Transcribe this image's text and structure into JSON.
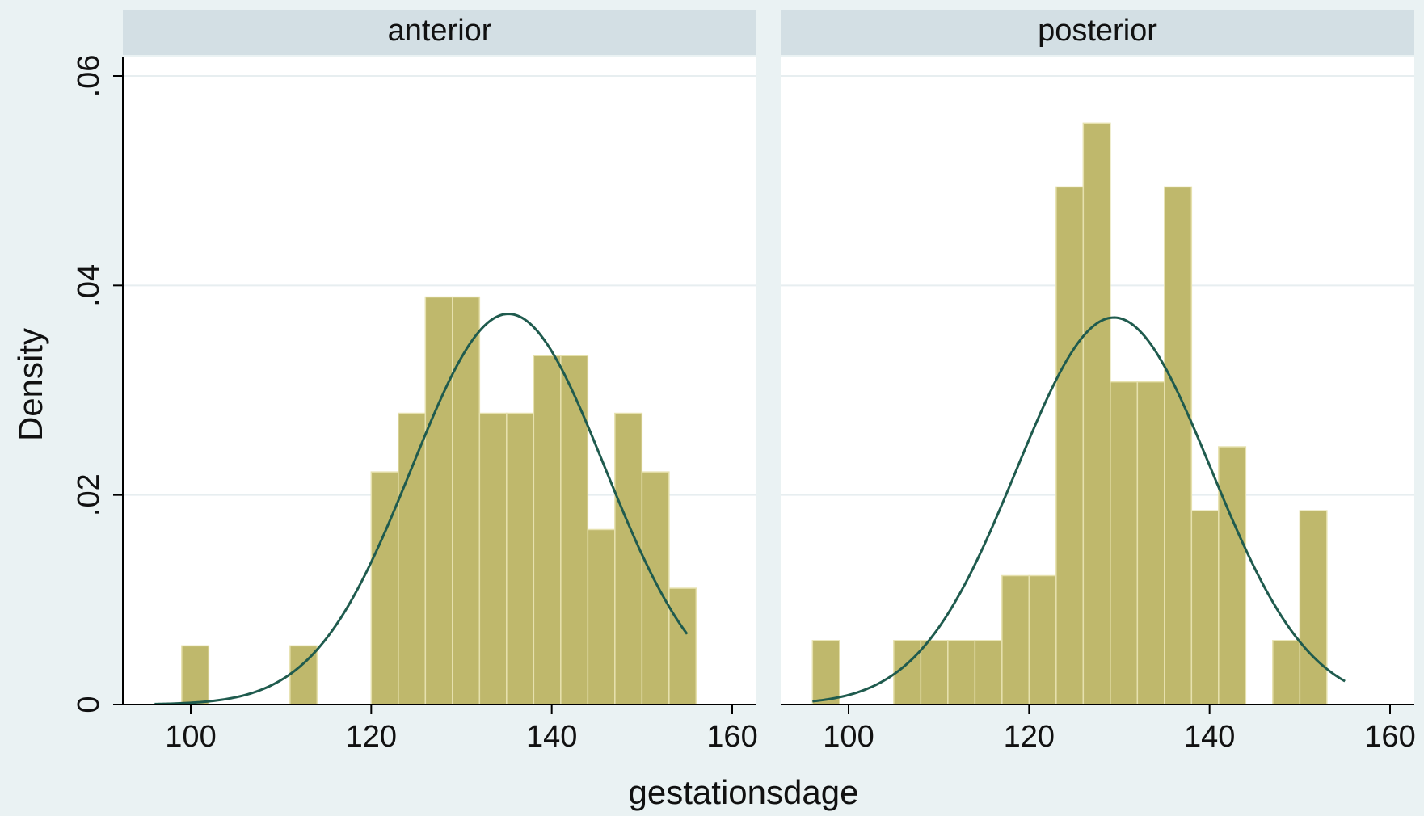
{
  "chart_data": {
    "type": "bar",
    "subtype": "histogram-with-normal-density",
    "xlabel": "gestationsdage",
    "ylabel": "Density",
    "xlim": [
      92,
      160
    ],
    "ylim": [
      0,
      0.06
    ],
    "x_ticks": [
      100,
      120,
      140,
      160
    ],
    "y_ticks": [
      0,
      0.02,
      0.04,
      0.06
    ],
    "y_tick_labels": [
      "0",
      ".02",
      ".04",
      ".06"
    ],
    "grid": true,
    "legend": "none",
    "bar_color": "#bfb86c",
    "bar_edge_color": "#e6e1ae",
    "curve_color": "#1f5b4e",
    "strip_color": "#d3dfe4",
    "panels": [
      {
        "label": "anterior",
        "bins": [
          {
            "x0": 99,
            "x1": 102,
            "density": 0.0056
          },
          {
            "x0": 111,
            "x1": 114,
            "density": 0.0056
          },
          {
            "x0": 120,
            "x1": 123,
            "density": 0.0222
          },
          {
            "x0": 123,
            "x1": 126,
            "density": 0.0278
          },
          {
            "x0": 126,
            "x1": 129,
            "density": 0.0389
          },
          {
            "x0": 129,
            "x1": 132,
            "density": 0.0389
          },
          {
            "x0": 132,
            "x1": 135,
            "density": 0.0278
          },
          {
            "x0": 135,
            "x1": 138,
            "density": 0.0278
          },
          {
            "x0": 138,
            "x1": 141,
            "density": 0.0333
          },
          {
            "x0": 141,
            "x1": 144,
            "density": 0.0333
          },
          {
            "x0": 144,
            "x1": 147,
            "density": 0.0167
          },
          {
            "x0": 147,
            "x1": 150,
            "density": 0.0278
          },
          {
            "x0": 150,
            "x1": 153,
            "density": 0.0222
          },
          {
            "x0": 153,
            "x1": 156,
            "density": 0.0111
          }
        ],
        "normal_curve": {
          "mean": 135.2,
          "sd": 10.7,
          "x_range": [
            96,
            155
          ]
        }
      },
      {
        "label": "posterior",
        "bins": [
          {
            "x0": 96,
            "x1": 99,
            "density": 0.0061
          },
          {
            "x0": 105,
            "x1": 108,
            "density": 0.0061
          },
          {
            "x0": 108,
            "x1": 111,
            "density": 0.0061
          },
          {
            "x0": 111,
            "x1": 114,
            "density": 0.0061
          },
          {
            "x0": 114,
            "x1": 117,
            "density": 0.0061
          },
          {
            "x0": 117,
            "x1": 120,
            "density": 0.0123
          },
          {
            "x0": 120,
            "x1": 123,
            "density": 0.0123
          },
          {
            "x0": 123,
            "x1": 126,
            "density": 0.0494
          },
          {
            "x0": 126,
            "x1": 129,
            "density": 0.0555
          },
          {
            "x0": 129,
            "x1": 132,
            "density": 0.0308
          },
          {
            "x0": 132,
            "x1": 135,
            "density": 0.0308
          },
          {
            "x0": 135,
            "x1": 138,
            "density": 0.0494
          },
          {
            "x0": 138,
            "x1": 141,
            "density": 0.0185
          },
          {
            "x0": 141,
            "x1": 144,
            "density": 0.0246
          },
          {
            "x0": 147,
            "x1": 150,
            "density": 0.0061
          },
          {
            "x0": 150,
            "x1": 153,
            "density": 0.0185
          }
        ],
        "normal_curve": {
          "mean": 129.4,
          "sd": 10.8,
          "x_range": [
            96,
            155
          ]
        }
      }
    ]
  }
}
